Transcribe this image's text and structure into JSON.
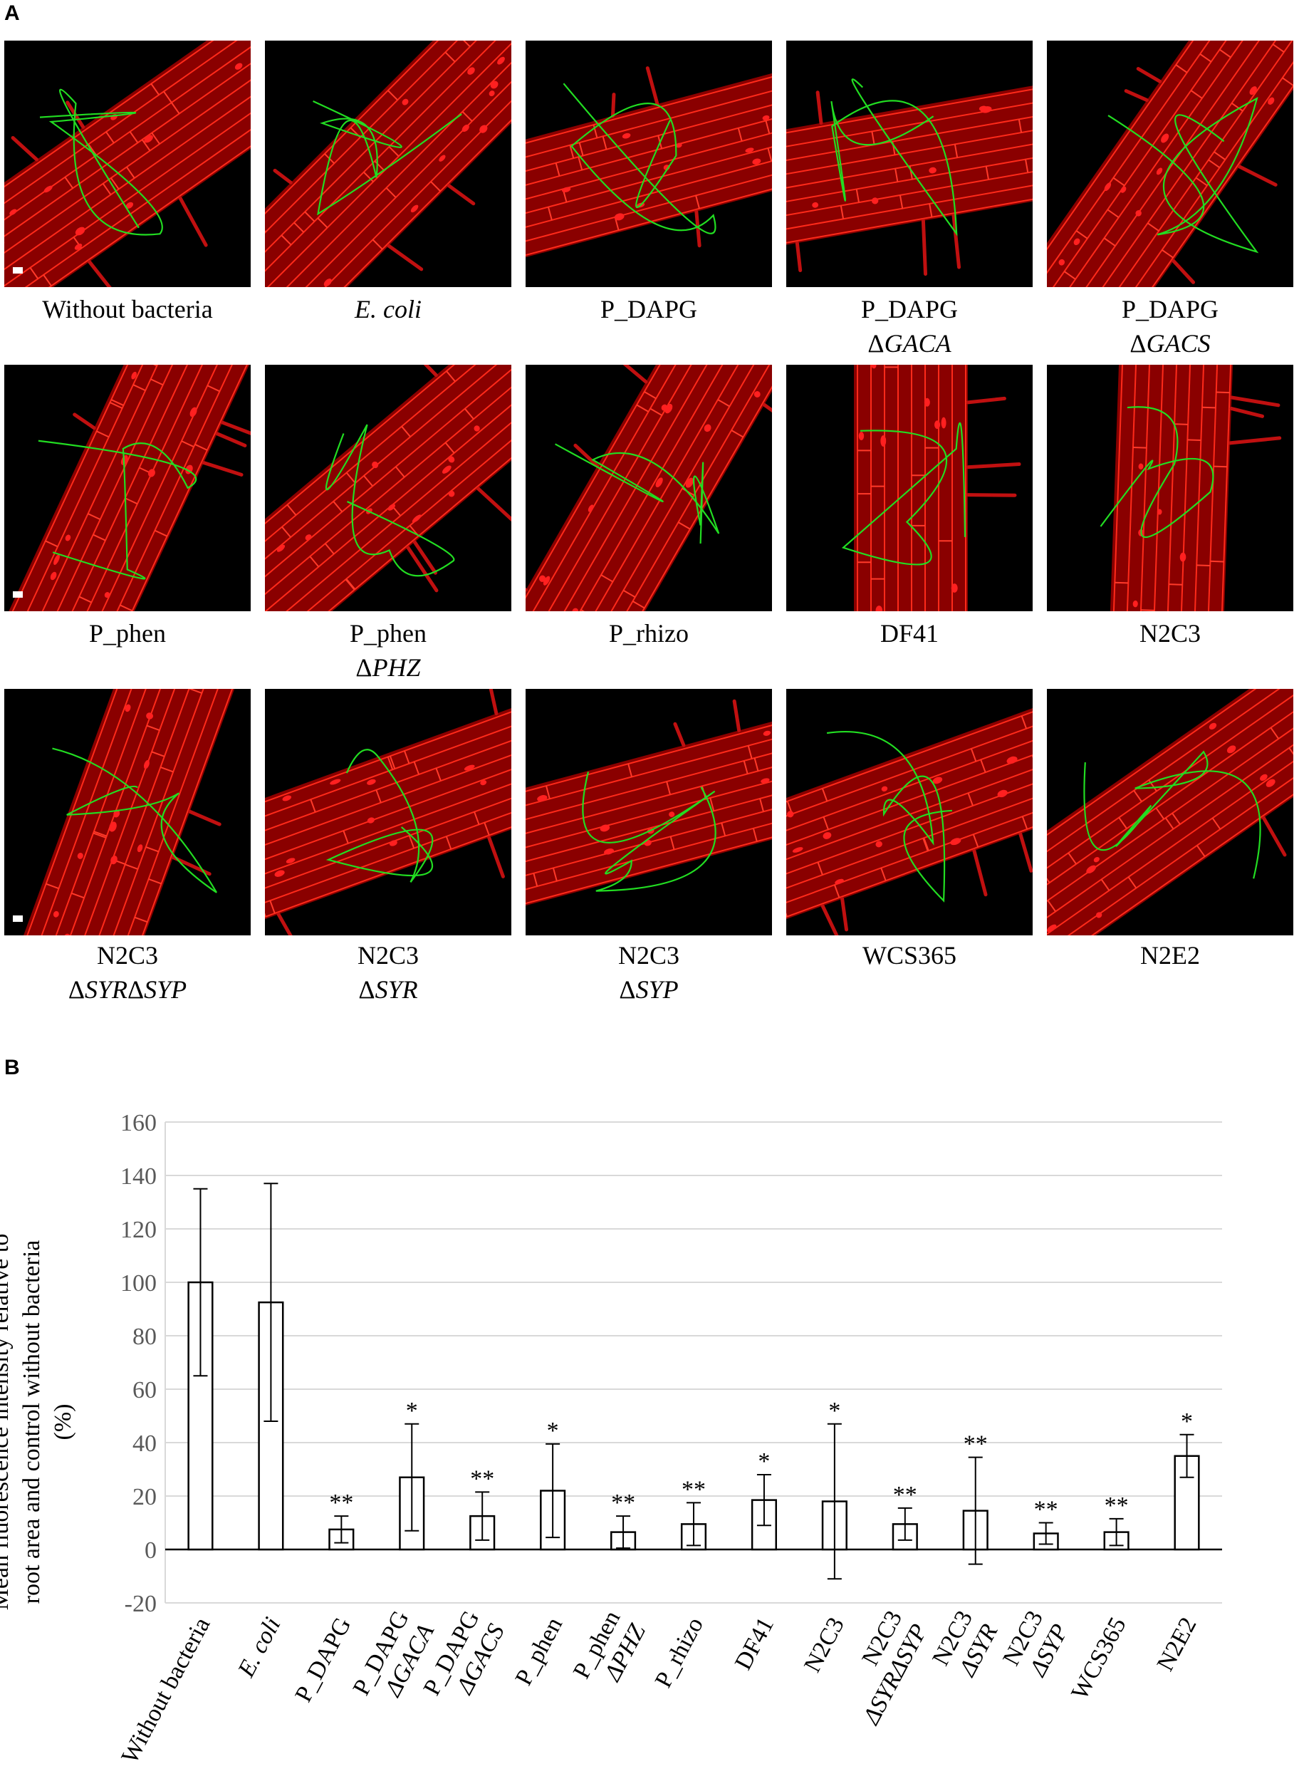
{
  "panel_a": {
    "letter": "A",
    "tiles": [
      {
        "name": "Without bacteria",
        "sub": ""
      },
      {
        "name": "E. coli",
        "sub": "",
        "italic": true
      },
      {
        "name": "P_DAPG",
        "sub": ""
      },
      {
        "name": "P_DAPG",
        "sub_prefix": "Δ",
        "sub": "GACA"
      },
      {
        "name": "P_DAPG",
        "sub_prefix": "Δ",
        "sub": "GACS"
      },
      {
        "name": "P_phen",
        "sub": ""
      },
      {
        "name": "P_phen",
        "sub_prefix": "Δ",
        "sub": "PHZ"
      },
      {
        "name": "P_rhizo",
        "sub": ""
      },
      {
        "name": "DF41",
        "sub": ""
      },
      {
        "name": "N2C3",
        "sub": ""
      },
      {
        "name": "N2C3",
        "sub_prefix": "Δ",
        "sub": "SYRΔSYP"
      },
      {
        "name": "N2C3",
        "sub_prefix": "Δ",
        "sub": "SYR"
      },
      {
        "name": "N2C3",
        "sub_prefix": "Δ",
        "sub": "SYP"
      },
      {
        "name": "WCS365",
        "sub": ""
      },
      {
        "name": "N2E2",
        "sub": ""
      }
    ]
  },
  "panel_b": {
    "letter": "B",
    "ylabel_lines": [
      "Mean  fluorescence intensity relative to",
      "root area and control without bacteria",
      "(%)"
    ]
  },
  "chart_data": {
    "type": "bar",
    "categories": [
      "Without bacteria",
      "E. coli",
      "P_DAPG",
      "P_DAPG ΔGACA",
      "P_DAPG ΔGACS",
      "P_phen",
      "P_phen ΔPHZ",
      "P_rhizo",
      "DF41",
      "N2C3",
      "N2C3 ΔSYRΔSYP",
      "N2C3 ΔSYR",
      "N2C3 ΔSYP",
      "WCS365",
      "N2E2"
    ],
    "values": [
      100,
      92.5,
      7.5,
      27,
      12.5,
      22,
      6.5,
      9.5,
      18.5,
      18,
      9.5,
      14.5,
      6,
      6.5,
      35
    ],
    "error": [
      35,
      44.5,
      5,
      20,
      9,
      17.5,
      6,
      8,
      9.5,
      29,
      6,
      20,
      4,
      5,
      8
    ],
    "significance": [
      "",
      "",
      "**",
      "*",
      "**",
      "*",
      "**",
      "**",
      "*",
      "*",
      "**",
      "**",
      "**",
      "**",
      "*"
    ],
    "ylim": [
      -20,
      160
    ],
    "yticks": [
      -20,
      0,
      20,
      40,
      60,
      80,
      100,
      120,
      140,
      160
    ],
    "grid": true,
    "bar_fill": "#ffffff",
    "bar_stroke": "#000000",
    "grid_color": "#d9d9d9"
  }
}
